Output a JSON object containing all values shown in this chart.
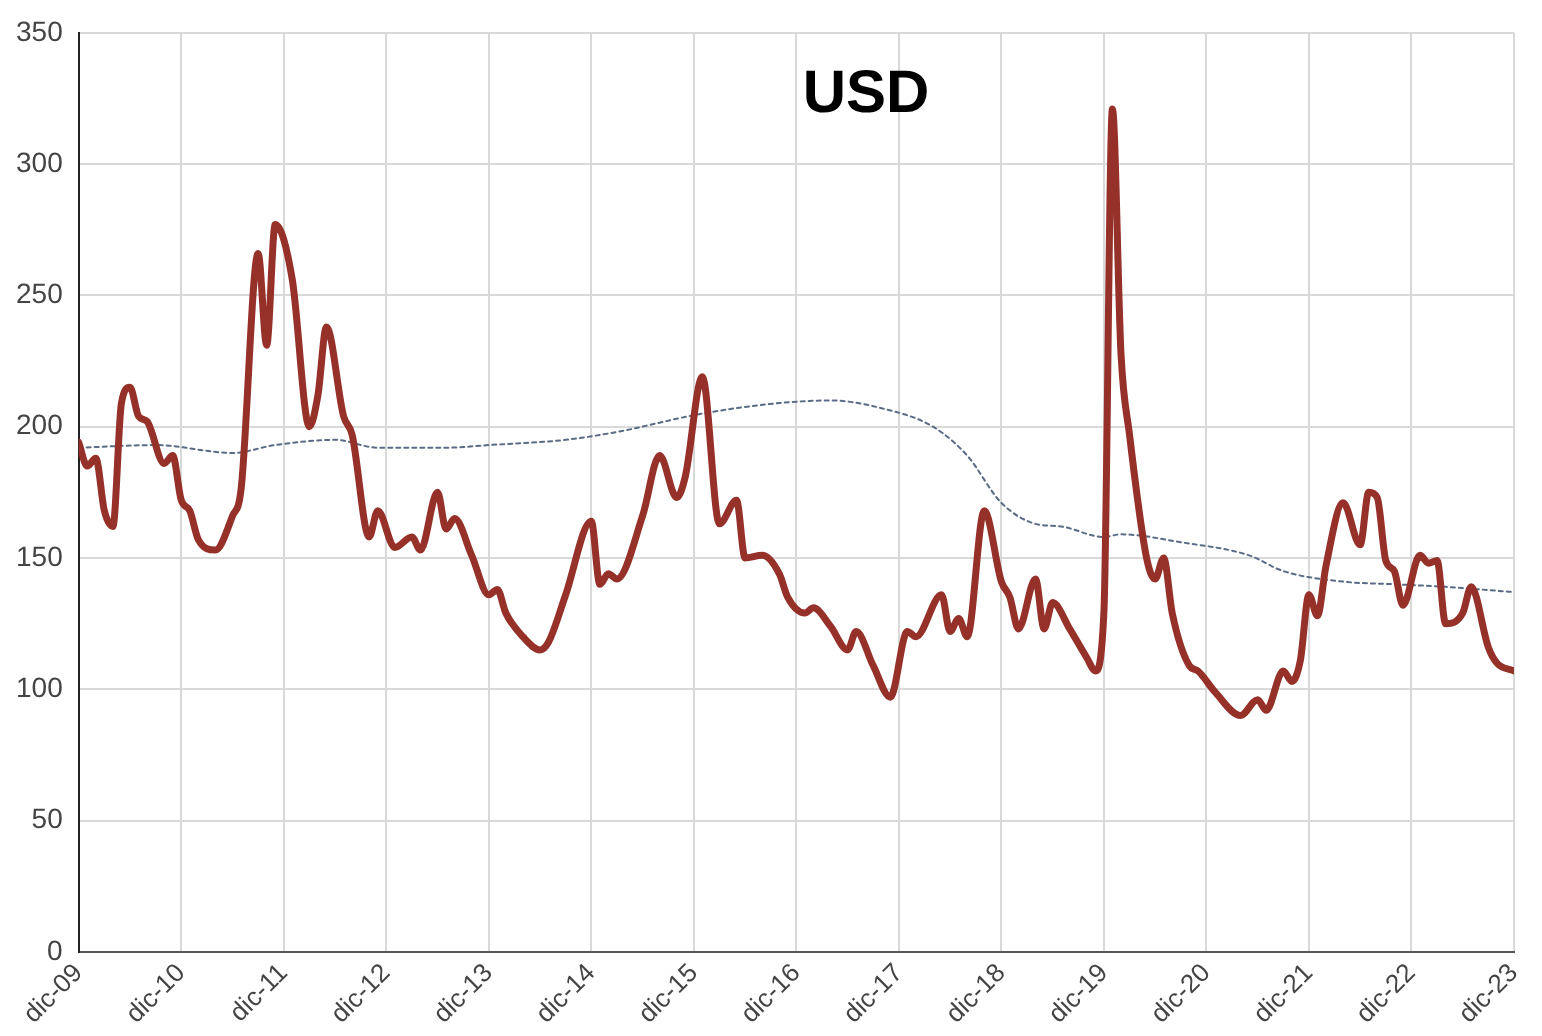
{
  "chart_data": {
    "type": "line",
    "title": "USD",
    "legend": false,
    "grid": true,
    "marker": "none",
    "ylim": [
      0,
      350
    ],
    "yticks": [
      0,
      50,
      100,
      150,
      200,
      250,
      300,
      350
    ],
    "xlim": [
      "2009-12",
      "2023-12"
    ],
    "xticks": [
      {
        "value": "2009-12",
        "label": "dic-09"
      },
      {
        "value": "2010-12",
        "label": "dic-10"
      },
      {
        "value": "2011-12",
        "label": "dic-11"
      },
      {
        "value": "2012-12",
        "label": "dic-12"
      },
      {
        "value": "2013-12",
        "label": "dic-13"
      },
      {
        "value": "2014-12",
        "label": "dic-14"
      },
      {
        "value": "2015-12",
        "label": "dic-15"
      },
      {
        "value": "2016-12",
        "label": "dic-16"
      },
      {
        "value": "2017-12",
        "label": "dic-17"
      },
      {
        "value": "2018-12",
        "label": "dic-18"
      },
      {
        "value": "2019-12",
        "label": "dic-19"
      },
      {
        "value": "2020-12",
        "label": "dic-20"
      },
      {
        "value": "2021-12",
        "label": "dic-21"
      },
      {
        "value": "2022-12",
        "label": "dic-22"
      },
      {
        "value": "2023-12",
        "label": "dic-23"
      }
    ],
    "series": [
      {
        "color": "#96312a",
        "line_style": "solid",
        "x": [
          "2009-12",
          "2010-01",
          "2010-02",
          "2010-03",
          "2010-04",
          "2010-05",
          "2010-06",
          "2010-07",
          "2010-08",
          "2010-10",
          "2010-11",
          "2010-12",
          "2011-01",
          "2011-02",
          "2011-04",
          "2011-06",
          "2011-07",
          "2011-09",
          "2011-10",
          "2011-11",
          "2012-01",
          "2012-03",
          "2012-04",
          "2012-05",
          "2012-07",
          "2012-08",
          "2012-10",
          "2012-11",
          "2013-01",
          "2013-03",
          "2013-04",
          "2013-06",
          "2013-07",
          "2013-08",
          "2013-10",
          "2013-12",
          "2014-01",
          "2014-02",
          "2014-04",
          "2014-06",
          "2014-07",
          "2014-09",
          "2014-12",
          "2015-01",
          "2015-02",
          "2015-03",
          "2015-06",
          "2015-08",
          "2015-10",
          "2015-11",
          "2016-01",
          "2016-03",
          "2016-05",
          "2016-06",
          "2016-08",
          "2016-10",
          "2016-11",
          "2017-01",
          "2017-02",
          "2017-04",
          "2017-06",
          "2017-07",
          "2017-09",
          "2017-11",
          "2018-01",
          "2018-02",
          "2018-05",
          "2018-06",
          "2018-07",
          "2018-08",
          "2018-10",
          "2018-12",
          "2019-01",
          "2019-02",
          "2019-04",
          "2019-05",
          "2019-06",
          "2019-08",
          "2019-10",
          "2019-11",
          "2019-12",
          "2020-01",
          "2020-02",
          "2020-03",
          "2020-05",
          "2020-06",
          "2020-07",
          "2020-08",
          "2020-10",
          "2020-11",
          "2021-01",
          "2021-04",
          "2021-06",
          "2021-07",
          "2021-09",
          "2021-10",
          "2021-11",
          "2021-12",
          "2022-01",
          "2022-02",
          "2022-04",
          "2022-06",
          "2022-07",
          "2022-08",
          "2022-09",
          "2022-10",
          "2022-11",
          "2023-01",
          "2023-02",
          "2023-03",
          "2023-04",
          "2023-06",
          "2023-07",
          "2023-09",
          "2023-10",
          "2023-12"
        ],
        "values": [
          194,
          185,
          188,
          168,
          162,
          209,
          215,
          204,
          202,
          186,
          189,
          172,
          168,
          157,
          153,
          166,
          176,
          266,
          231,
          277,
          256,
          200,
          212,
          238,
          204,
          197,
          158,
          168,
          154,
          158,
          153,
          175,
          161,
          165,
          151,
          136,
          138,
          129,
          120,
          115,
          118,
          136,
          164,
          140,
          144,
          142,
          166,
          189,
          173,
          181,
          219,
          163,
          172,
          150,
          151,
          144,
          135,
          129,
          131,
          124,
          115,
          122,
          109,
          97,
          122,
          120,
          136,
          122,
          127,
          120,
          168,
          141,
          135,
          123,
          142,
          123,
          133,
          123,
          112,
          107,
          129,
          321,
          228,
          197,
          150,
          142,
          150,
          129,
          109,
          107,
          99,
          90,
          96,
          92,
          107,
          103,
          111,
          136,
          128,
          147,
          171,
          155,
          175,
          173,
          149,
          145,
          132,
          151,
          148,
          149,
          125,
          129,
          139,
          116,
          110,
          107
        ]
      },
      {
        "color": "#5b6b86",
        "line_style": "dotted",
        "x": [
          "2009-12",
          "2010-09",
          "2011-06",
          "2011-11",
          "2012-06",
          "2012-11",
          "2013-07",
          "2013-12",
          "2014-09",
          "2015-03",
          "2016-01",
          "2016-10",
          "2017-04",
          "2017-10",
          "2018-04",
          "2018-08",
          "2018-12",
          "2019-04",
          "2019-07",
          "2019-12",
          "2020-02",
          "2020-09",
          "2021-05",
          "2021-09",
          "2022-04",
          "2022-10",
          "2023-04",
          "2023-12"
        ],
        "values": [
          192,
          193,
          190,
          193,
          195,
          192,
          192,
          193,
          195,
          198,
          205,
          209,
          210,
          207,
          200,
          189,
          171,
          163,
          162,
          158,
          159,
          156,
          151,
          145,
          141,
          140,
          139,
          137
        ]
      }
    ]
  }
}
